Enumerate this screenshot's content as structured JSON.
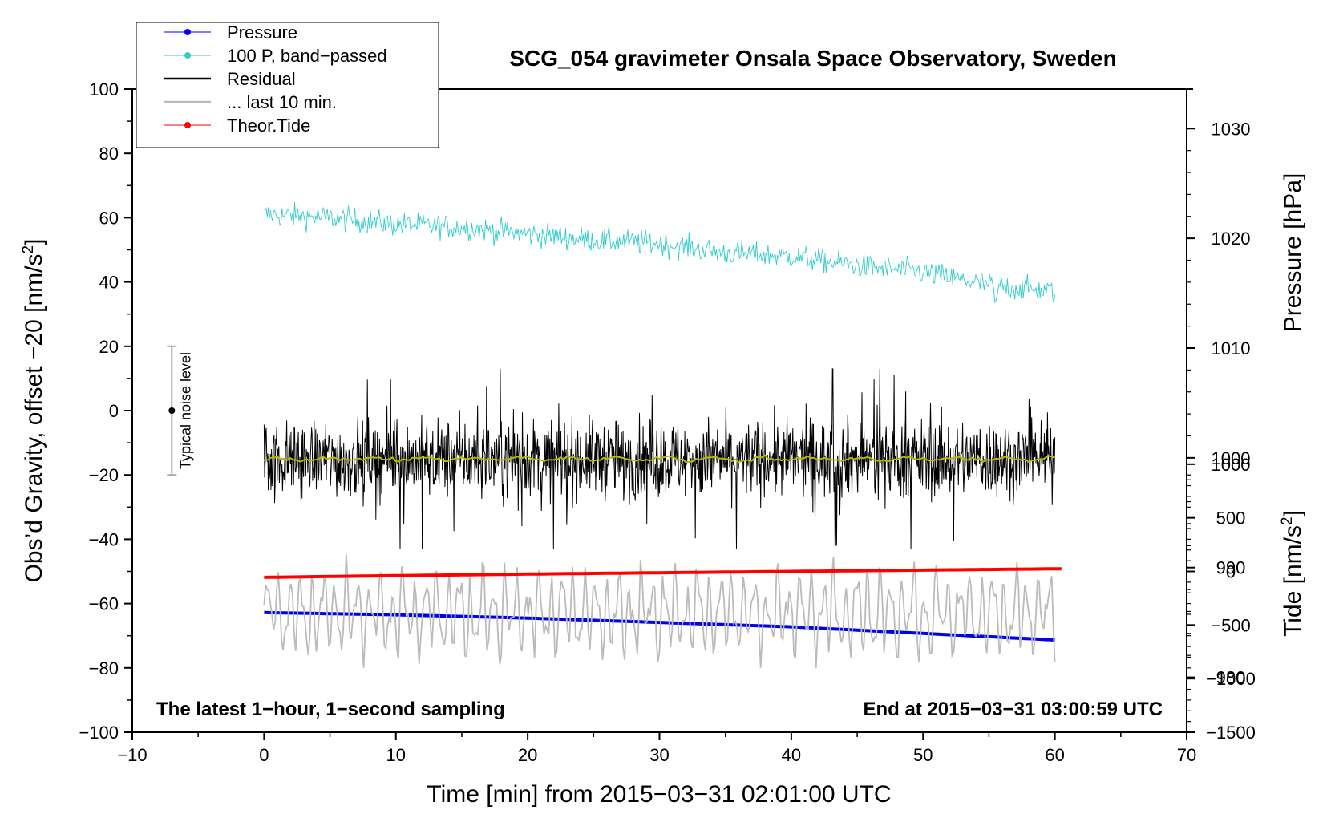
{
  "chart_data": {
    "type": "line",
    "title": "SCG_054 gravimeter Onsala Space Observatory, Sweden",
    "xlabel": "Time [min] from 2015−03−31 02:01:00 UTC",
    "ylabel_left_prefix": "Obs’d Gravity, offset −20 [nm/s",
    "ylabel_left_sup": "2",
    "ylabel_left_suffix": "]",
    "ylabel_pressure": "Pressure [hPa]",
    "ylabel_tide_prefix": "Tide [nm/s",
    "ylabel_tide_sup": "2",
    "ylabel_tide_suffix": "]",
    "xlim": [
      -10,
      70
    ],
    "ylim": [
      -100,
      100
    ],
    "pressure_lim": [
      975,
      1033.6
    ],
    "tide_lim": [
      -1500,
      4500
    ],
    "x_ticks": [
      "−10",
      "0",
      "10",
      "20",
      "30",
      "40",
      "50",
      "60",
      "70"
    ],
    "y_ticks": [
      "100",
      "80",
      "60",
      "40",
      "20",
      "0",
      "−20",
      "−40",
      "−60",
      "−80",
      "−100"
    ],
    "pressure_ticks": [
      "1030",
      "1020",
      "1010",
      "1000",
      "990",
      "980"
    ],
    "tide_ticks": [
      "1000",
      "500",
      "0",
      "−500",
      "−1000",
      "−1500"
    ],
    "annotation_left": "The latest 1−hour, 1−second sampling",
    "annotation_right": "End at 2015−03−31 03:00:59 UTC",
    "noise_label": "Typical noise level",
    "noise_bar": {
      "x": -7,
      "center": 0,
      "low": -20,
      "high": 20
    },
    "legend": [
      {
        "label": "Pressure",
        "color": "#0000ee",
        "marker": true,
        "width": 1
      },
      {
        "label": "100 P, band−passed",
        "color": "#33cccc",
        "marker": true,
        "width": 1
      },
      {
        "label": "Residual",
        "color": "#000000",
        "marker": false,
        "width": 2
      },
      {
        "label": "... last 10 min.",
        "color": "#bbbbbb",
        "marker": false,
        "width": 2
      },
      {
        "label": "Theor.Tide",
        "color": "#ff0000",
        "marker": true,
        "width": 1
      }
    ],
    "series": [
      {
        "name": "Pressure",
        "color": "#0000ee",
        "axis": "pressure",
        "x": [
          0,
          10,
          20,
          30,
          40,
          50,
          60
        ],
        "values": [
          985.9,
          985.7,
          985.4,
          985.0,
          984.6,
          984.0,
          983.4
        ]
      },
      {
        "name": "100 P, band−passed",
        "color": "#33cccc",
        "axis": "left",
        "x": [
          0,
          5,
          10,
          15,
          20,
          25,
          30,
          35,
          40,
          45,
          50,
          55,
          60
        ],
        "values": [
          61,
          60,
          58,
          57,
          55,
          53,
          52,
          49,
          48,
          45,
          43,
          39,
          37
        ]
      },
      {
        "name": "Residual",
        "color": "#000000",
        "axis": "left",
        "x": [
          0,
          60
        ],
        "values": [
          -15,
          -15
        ]
      },
      {
        "name": "Residual (smoothed)",
        "color": "#b8b800",
        "axis": "left",
        "x": [
          0,
          10,
          20,
          30,
          40,
          50,
          60
        ],
        "values": [
          -15,
          -15,
          -15,
          -15,
          -15,
          -15,
          -15
        ]
      },
      {
        "name": "... last 10 min.",
        "color": "#bbbbbb",
        "axis": "left",
        "x": [
          0,
          60
        ],
        "values": [
          -63,
          -63
        ]
      },
      {
        "name": "Theor.Tide",
        "color": "#ff0000",
        "axis": "tide",
        "x": [
          0,
          20,
          40,
          60.5
        ],
        "values": [
          -55,
          -25,
          0,
          25
        ]
      }
    ]
  }
}
